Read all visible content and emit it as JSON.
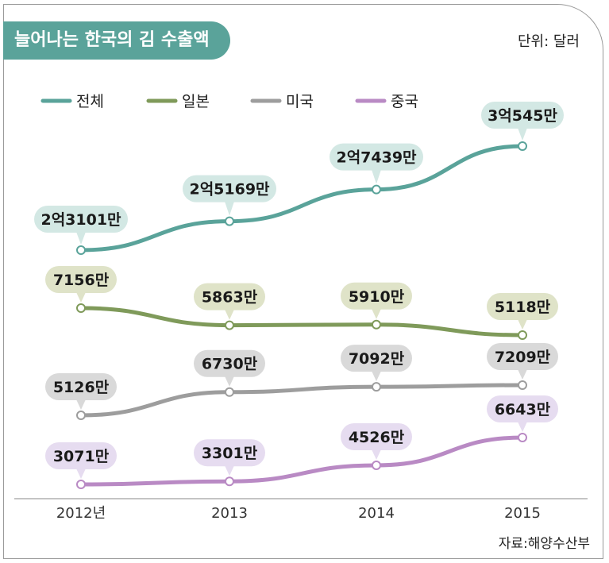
{
  "header": {
    "title": "늘어나는 한국의 김 수출액",
    "unit": "단위: 달러"
  },
  "footer": {
    "source": "자료:해양수산부"
  },
  "chart_data": {
    "type": "line",
    "categories": [
      "2012년",
      "2013",
      "2014",
      "2015"
    ],
    "series": [
      {
        "name": "전체",
        "color": "#5aa39a",
        "label_bg": "#d3e8e4",
        "values": [
          231010000,
          251690000,
          274390000,
          305450000
        ],
        "labels": [
          "2억3101만",
          "2억5169만",
          "2억7439만",
          "3억545만"
        ]
      },
      {
        "name": "일본",
        "color": "#7f9a5a",
        "label_bg": "#dfe3c8",
        "values": [
          71560000,
          58630000,
          59100000,
          51180000
        ],
        "labels": [
          "7156만",
          "5863만",
          "5910만",
          "5118만"
        ]
      },
      {
        "name": "미국",
        "color": "#9d9d9d",
        "label_bg": "#d9d9d9",
        "values": [
          51260000,
          67300000,
          70920000,
          72090000
        ],
        "labels": [
          "5126만",
          "6730만",
          "7092만",
          "7209만"
        ]
      },
      {
        "name": "중국",
        "color": "#b98ac4",
        "label_bg": "#e6dcf0",
        "values": [
          30710000,
          33010000,
          45260000,
          66430000
        ],
        "labels": [
          "3071만",
          "3301만",
          "4526만",
          "6643만"
        ]
      }
    ],
    "legend_position": "top-left",
    "grid": false
  }
}
